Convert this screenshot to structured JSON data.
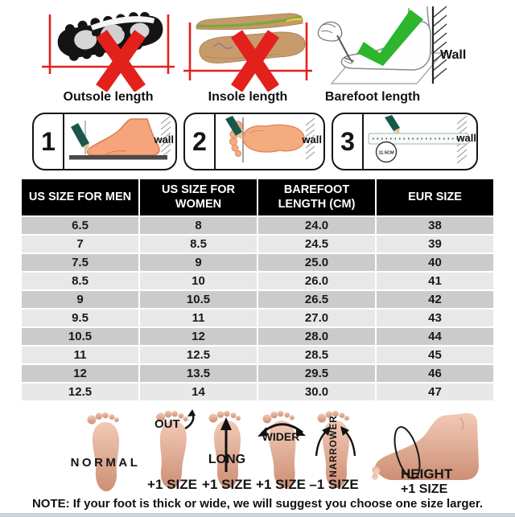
{
  "measure_methods": [
    {
      "label": "Outsole length",
      "verdict": "wrong"
    },
    {
      "label": "Insole length",
      "verdict": "wrong"
    },
    {
      "label": "Barefoot length",
      "verdict": "correct",
      "wall_label": "Wall"
    }
  ],
  "steps": [
    {
      "number": "1",
      "wall_label": "wall"
    },
    {
      "number": "2",
      "wall_label": "wall"
    },
    {
      "number": "3",
      "wall_label": "wall",
      "measurement": "11.5CM"
    }
  ],
  "size_table": {
    "headers": [
      "US SIZE FOR MEN",
      "US SIZE FOR WOMEN",
      "BAREFOOT LENGTH (CM)",
      "EUR SIZE"
    ],
    "rows": [
      [
        "6.5",
        "8",
        "24.0",
        "38"
      ],
      [
        "7",
        "8.5",
        "24.5",
        "39"
      ],
      [
        "7.5",
        "9",
        "25.0",
        "40"
      ],
      [
        "8.5",
        "10",
        "26.0",
        "41"
      ],
      [
        "9",
        "10.5",
        "26.5",
        "42"
      ],
      [
        "9.5",
        "11",
        "27.0",
        "43"
      ],
      [
        "10.5",
        "12",
        "28.0",
        "44"
      ],
      [
        "11",
        "12.5",
        "28.5",
        "45"
      ],
      [
        "12",
        "13.5",
        "29.5",
        "46"
      ],
      [
        "12.5",
        "14",
        "30.0",
        "47"
      ]
    ]
  },
  "foot_types": [
    {
      "label": "NORMAL",
      "size_note": ""
    },
    {
      "label": "OUT",
      "size_note": "+1 SIZE"
    },
    {
      "label": "LONG",
      "size_note": "+1 SIZE"
    },
    {
      "label": "WIDER",
      "size_note": "+1 SIZE"
    },
    {
      "label": "NARROWER",
      "size_note": "–1 SIZE"
    },
    {
      "label": "HEIGHT",
      "size_note": "+1 SIZE"
    }
  ],
  "note": "NOTE: If your foot is thick or wide, we will suggest you choose one size larger.",
  "colors": {
    "error_red": "#e2211c",
    "check_green": "#2db52d",
    "header_bg": "#000000",
    "row_dark": "#cbcbcb",
    "row_light": "#e8e8e8",
    "pencil_green": "#17584a",
    "skin_light": "#f2cab7",
    "skin_dark": "#cd8f74"
  }
}
